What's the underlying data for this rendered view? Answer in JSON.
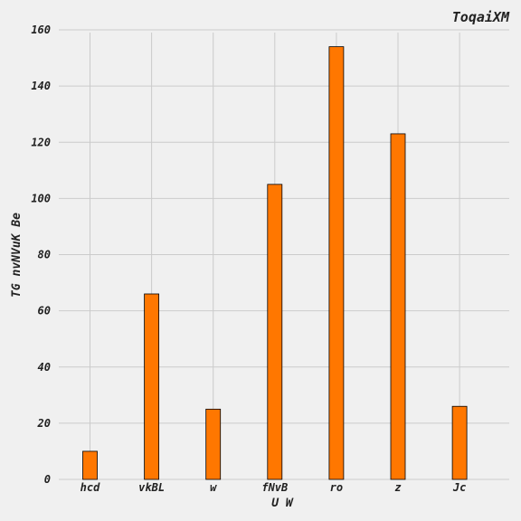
{
  "chart_data": {
    "type": "bar",
    "title": "ToqaiXM",
    "xlabel": "U W",
    "ylabel": "TG nvNVuK Be",
    "categories": [
      "hcd",
      "vkBL",
      "w",
      "fNvB",
      "ro",
      "z",
      "Jc"
    ],
    "values": [
      10,
      66,
      25,
      105,
      154,
      123,
      26
    ],
    "ylim": [
      0,
      160
    ],
    "yticks": [
      "0",
      "20",
      "40",
      "60",
      "80",
      "100",
      "120",
      "140",
      "160"
    ],
    "grid": true,
    "bar_color": "#ff7700"
  }
}
